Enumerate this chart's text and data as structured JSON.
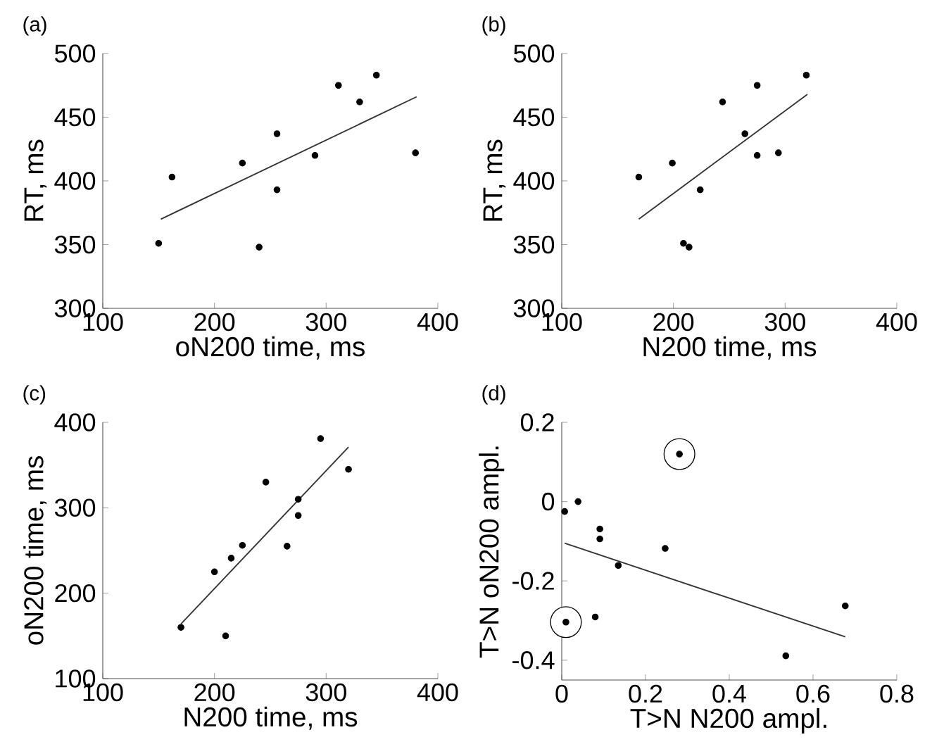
{
  "chart_data": [
    {
      "type": "scatter",
      "title": "(a)",
      "xlabel": "oN200 time, ms",
      "ylabel": "RT, ms",
      "xlim": [
        100,
        400
      ],
      "ylim": [
        300,
        500
      ],
      "xticks": [
        100,
        200,
        300,
        400
      ],
      "yticks": [
        300,
        350,
        400,
        450,
        500
      ],
      "series": [
        {
          "marker": "circle",
          "color": "#000000",
          "x": [
            150,
            162,
            225,
            240,
            256,
            256,
            290,
            311,
            330,
            345,
            380
          ],
          "values": [
            351,
            403,
            414,
            348,
            437,
            393,
            420,
            475,
            462,
            483,
            422
          ]
        },
        {
          "type": "line",
          "marker": "none",
          "color": "#333333",
          "x": [
            152,
            381
          ],
          "values": [
            370,
            466
          ]
        }
      ]
    },
    {
      "type": "scatter",
      "title": "(b)",
      "xlabel": "N200 time, ms",
      "ylabel": "RT, ms",
      "xlim": [
        100,
        400
      ],
      "ylim": [
        300,
        500
      ],
      "xticks": [
        100,
        200,
        300,
        400
      ],
      "yticks": [
        300,
        350,
        400,
        450,
        500
      ],
      "series": [
        {
          "marker": "circle",
          "color": "#000000",
          "x": [
            169,
            199,
            209,
            214,
            224,
            244,
            264,
            275,
            275,
            294,
            319
          ],
          "values": [
            403,
            414,
            351,
            348,
            393,
            462,
            437,
            475,
            420,
            422,
            483
          ]
        },
        {
          "type": "line",
          "marker": "none",
          "color": "#333333",
          "x": [
            169,
            320
          ],
          "values": [
            370,
            468
          ]
        }
      ]
    },
    {
      "type": "scatter",
      "title": "(c)",
      "xlabel": "N200 time, ms",
      "ylabel": "oN200 time, ms",
      "xlim": [
        100,
        400
      ],
      "ylim": [
        100,
        400
      ],
      "xticks": [
        100,
        200,
        300,
        400
      ],
      "yticks": [
        100,
        200,
        300,
        400
      ],
      "series": [
        {
          "marker": "circle",
          "color": "#000000",
          "x": [
            170,
            200,
            210,
            215,
            225,
            246,
            265,
            275,
            275,
            295,
            320
          ],
          "values": [
            160,
            225,
            150,
            241,
            256,
            330,
            255,
            310,
            291,
            381,
            345
          ]
        },
        {
          "type": "line",
          "marker": "none",
          "color": "#333333",
          "x": [
            170,
            320
          ],
          "values": [
            164,
            371
          ]
        }
      ]
    },
    {
      "type": "scatter",
      "title": "(d)",
      "xlabel": "T>N N200 ampl.",
      "ylabel": "T>N oN200 ampl.",
      "xlim": [
        0,
        0.8
      ],
      "ylim": [
        -0.45,
        0.2
      ],
      "xticks": [
        0,
        0.2,
        0.4,
        0.6,
        0.8
      ],
      "yticks": [
        -0.4,
        -0.2,
        0,
        0.2
      ],
      "series": [
        {
          "type": "bubble",
          "color": "#000000",
          "x": [
            0.01,
            0.281
          ],
          "values": [
            -0.304,
            0.12
          ],
          "sizes": [
            1,
            1
          ]
        },
        {
          "marker": "circle",
          "color": "#000000",
          "x": [
            0.007,
            0.039,
            0.01,
            0.08,
            0.091,
            0.091,
            0.135,
            0.247,
            0.281,
            0.535,
            0.677
          ],
          "values": [
            -0.025,
            0,
            -0.304,
            -0.291,
            -0.069,
            -0.094,
            -0.161,
            -0.118,
            0.12,
            -0.389,
            -0.263
          ]
        },
        {
          "type": "line",
          "marker": "none",
          "color": "#333333",
          "x": [
            0.007,
            0.677
          ],
          "values": [
            -0.105,
            -0.341
          ]
        }
      ]
    }
  ]
}
